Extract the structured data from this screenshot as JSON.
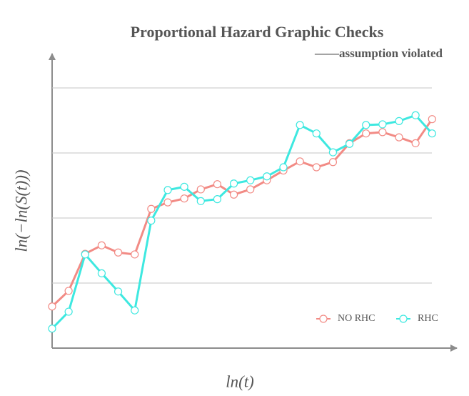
{
  "chart_data": {
    "type": "line",
    "title": "Proportional Hazard Graphic Checks",
    "subtitle": "——assumption violated",
    "x_label": "ln(t)",
    "y_label": "ln(−ln(S(t)))",
    "x": [
      0,
      1,
      2,
      3,
      4,
      5,
      6,
      7,
      8,
      9,
      10,
      11,
      12,
      13,
      14,
      15,
      16,
      17,
      18,
      19,
      20,
      21,
      22,
      23
    ],
    "series": [
      {
        "name": "NO RHC",
        "color": "#f28b85",
        "values": [
          0.64,
          0.88,
          1.45,
          1.58,
          1.47,
          1.44,
          2.14,
          2.24,
          2.3,
          2.44,
          2.52,
          2.36,
          2.44,
          2.58,
          2.73,
          2.87,
          2.78,
          2.86,
          3.15,
          3.3,
          3.32,
          3.24,
          3.15,
          3.52
        ]
      },
      {
        "name": "RHC",
        "color": "#3ee8e0",
        "values": [
          0.3,
          0.56,
          1.44,
          1.15,
          0.87,
          0.58,
          1.96,
          2.43,
          2.48,
          2.26,
          2.29,
          2.53,
          2.58,
          2.64,
          2.78,
          3.43,
          3.3,
          3.01,
          3.14,
          3.43,
          3.44,
          3.49,
          3.58,
          3.3
        ]
      }
    ],
    "xlim": [
      0,
      24.5
    ],
    "ylim": [
      0,
      4.5
    ],
    "yticks": [
      1,
      2,
      3,
      4
    ],
    "grid": true,
    "legend": "lower right"
  }
}
